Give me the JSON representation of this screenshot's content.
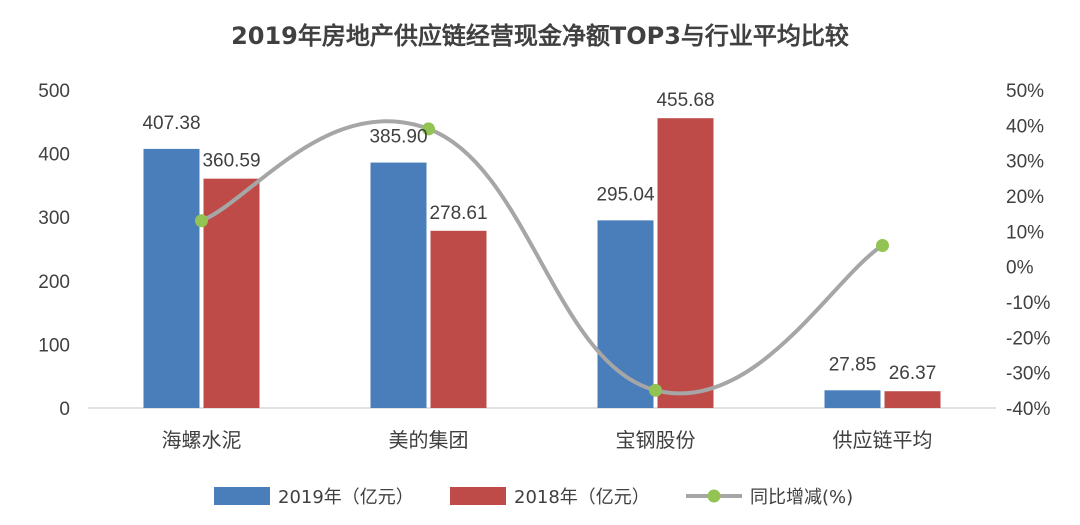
{
  "chart_data": {
    "type": "bar",
    "title": "2019年房地产供应链经营现金净额TOP3与行业平均比较",
    "categories": [
      "海螺水泥",
      "美的集团",
      "宝钢股份",
      "供应链平均"
    ],
    "series": [
      {
        "name": "2019年（亿元）",
        "kind": "bar",
        "axis": "left",
        "color": "#4A7EBB",
        "values": [
          407.38,
          385.9,
          295.04,
          27.85
        ],
        "labels": [
          "407.38",
          "385.90",
          "295.04",
          "27.85"
        ]
      },
      {
        "name": "2018年（亿元）",
        "kind": "bar",
        "axis": "left",
        "color": "#BE4B48",
        "values": [
          360.59,
          278.61,
          455.68,
          26.37
        ],
        "labels": [
          "360.59",
          "278.61",
          "455.68",
          "26.37"
        ]
      },
      {
        "name": "同比增减(%)",
        "kind": "line",
        "axis": "right",
        "color": "#A6A6A6",
        "marker_color": "#92C353",
        "values": [
          13,
          39,
          -35,
          6
        ]
      }
    ],
    "y_left": {
      "min": 0,
      "max": 500,
      "ticks": [
        "0",
        "100",
        "200",
        "300",
        "400",
        "500"
      ]
    },
    "y_right": {
      "min": -40,
      "max": 50,
      "ticks": [
        "-40%",
        "-30%",
        "-20%",
        "-10%",
        "0%",
        "10%",
        "20%",
        "30%",
        "40%",
        "50%"
      ]
    },
    "legend_position": "bottom",
    "grid": false
  }
}
